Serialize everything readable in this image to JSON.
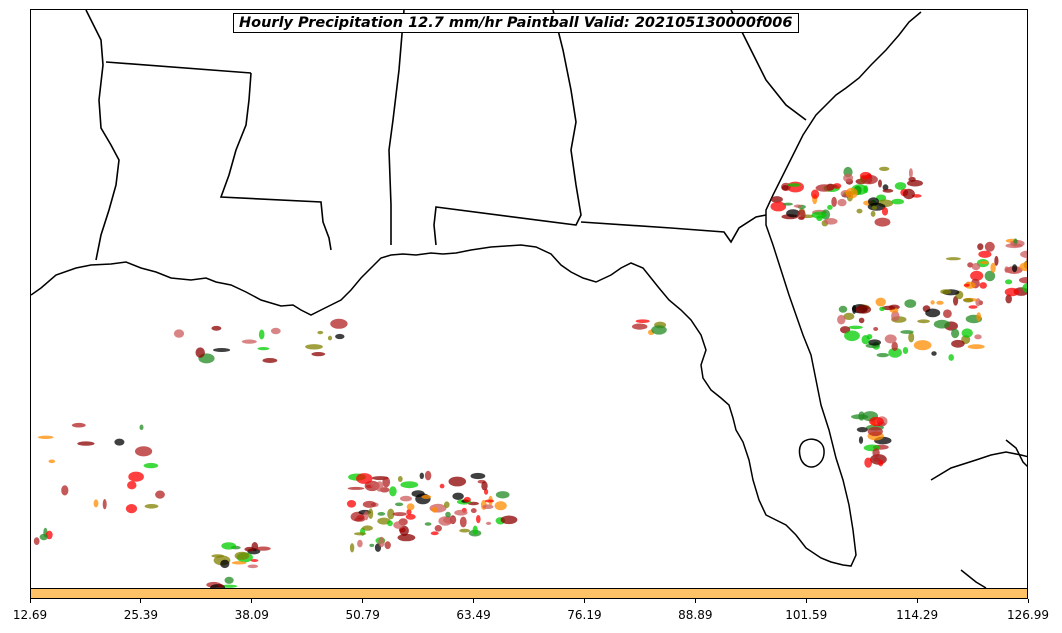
{
  "map": {
    "title": "Hourly Precipitation 12.7 mm/hr Paintball Valid: 202105130000f006",
    "land_color": "#ffffff",
    "border_color": "#000000"
  },
  "colorbar": {
    "color": "#ffc266",
    "ticks": [
      "12.69",
      "25.39",
      "38.09",
      "50.79",
      "63.49",
      "76.19",
      "88.89",
      "101.59",
      "114.29",
      "126.99"
    ]
  },
  "member_colors": [
    "#8b0000",
    "#ff0000",
    "#ff8c00",
    "#00cc00",
    "#808000",
    "#b22222",
    "#228b22",
    "#000000",
    "#cd5c5c"
  ]
}
